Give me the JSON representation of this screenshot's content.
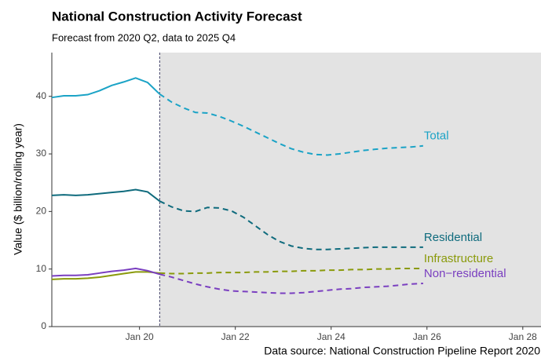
{
  "chart_data": {
    "type": "line",
    "title": "National Construction Activity Forecast",
    "subtitle": "Forecast from 2020 Q2, data to 2025 Q4",
    "y_label": "Value ($ billion/rolling year)",
    "source": "Data source: National Construction Pipeline Report 2020",
    "forecast_start": 2020.42,
    "x": [
      2018.17,
      2018.42,
      2018.67,
      2018.92,
      2019.17,
      2019.42,
      2019.67,
      2019.92,
      2020.17,
      2020.42,
      2020.67,
      2020.92,
      2021.17,
      2021.42,
      2021.67,
      2021.92,
      2022.17,
      2022.42,
      2022.67,
      2022.92,
      2023.17,
      2023.42,
      2023.67,
      2023.92,
      2024.17,
      2024.42,
      2024.67,
      2024.92,
      2025.17,
      2025.42,
      2025.67,
      2025.92
    ],
    "series": [
      {
        "name": "Total",
        "color": "#1ba3c6",
        "values": [
          39.8,
          40.1,
          40.1,
          40.3,
          41.0,
          41.9,
          42.5,
          43.2,
          42.4,
          40.4,
          39.0,
          38.0,
          37.2,
          37.1,
          36.5,
          35.7,
          34.8,
          33.8,
          32.8,
          31.8,
          30.9,
          30.3,
          29.9,
          29.8,
          30.0,
          30.3,
          30.6,
          30.8,
          31.0,
          31.1,
          31.2,
          31.4
        ]
      },
      {
        "name": "Residential",
        "color": "#0f6b7d",
        "values": [
          22.8,
          22.9,
          22.8,
          22.9,
          23.1,
          23.3,
          23.5,
          23.8,
          23.4,
          21.8,
          20.8,
          20.1,
          20.0,
          20.7,
          20.6,
          20.1,
          19.0,
          17.5,
          16.0,
          14.8,
          14.0,
          13.6,
          13.4,
          13.4,
          13.5,
          13.6,
          13.7,
          13.8,
          13.8,
          13.8,
          13.8,
          13.8
        ]
      },
      {
        "name": "Infrastructure",
        "color": "#8a9a0b",
        "values": [
          8.2,
          8.3,
          8.3,
          8.4,
          8.6,
          8.9,
          9.2,
          9.5,
          9.5,
          9.3,
          9.2,
          9.2,
          9.3,
          9.3,
          9.4,
          9.4,
          9.4,
          9.5,
          9.5,
          9.6,
          9.6,
          9.7,
          9.7,
          9.8,
          9.8,
          9.9,
          9.9,
          10.0,
          10.0,
          10.1,
          10.1,
          10.1
        ]
      },
      {
        "name": "Non−residential",
        "color": "#7a3fc0",
        "values": [
          8.8,
          8.9,
          8.9,
          9.0,
          9.3,
          9.6,
          9.8,
          10.1,
          9.7,
          9.1,
          8.6,
          8.0,
          7.4,
          6.9,
          6.5,
          6.2,
          6.1,
          6.0,
          5.9,
          5.8,
          5.8,
          5.9,
          6.1,
          6.3,
          6.5,
          6.6,
          6.8,
          6.9,
          7.0,
          7.2,
          7.4,
          7.5
        ]
      }
    ],
    "xlim": [
      2018.17,
      2028.38
    ],
    "xticks": [
      {
        "value": 2020,
        "label": "Jan 20"
      },
      {
        "value": 2022,
        "label": "Jan 22"
      },
      {
        "value": 2024,
        "label": "Jan 24"
      },
      {
        "value": 2026,
        "label": "Jan 26"
      },
      {
        "value": 2028,
        "label": "Jan 28"
      }
    ],
    "ylim": [
      0,
      47.6
    ],
    "yticks": [
      0,
      10,
      20,
      30,
      40
    ],
    "grid": false
  }
}
